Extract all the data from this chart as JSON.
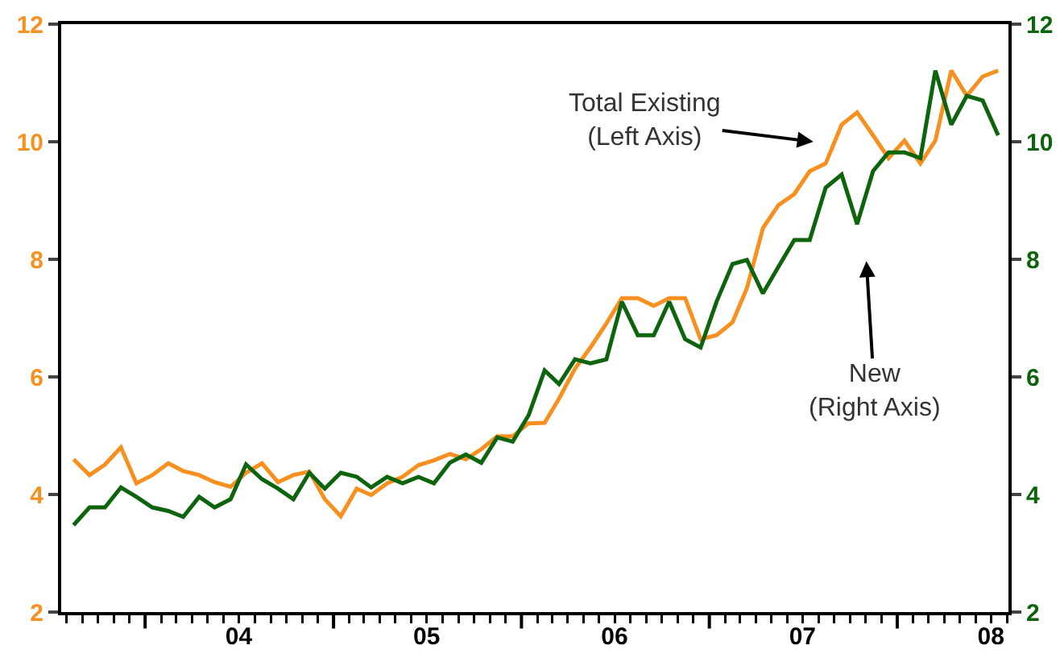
{
  "chart_data": {
    "type": "line",
    "x": [
      "2003-08-15",
      "2003-09-15",
      "2003-10-15",
      "2003-11-15",
      "2003-12-15",
      "2004-01-15",
      "2004-02-15",
      "2004-03-15",
      "2004-04-15",
      "2004-05-15",
      "2004-06-15",
      "2004-07-15",
      "2004-08-15",
      "2004-09-15",
      "2004-10-15",
      "2004-11-15",
      "2004-12-15",
      "2005-01-15",
      "2005-02-15",
      "2005-03-15",
      "2005-04-15",
      "2005-05-15",
      "2005-06-15",
      "2005-07-15",
      "2005-08-15",
      "2005-09-15",
      "2005-10-15",
      "2005-11-15",
      "2005-12-15",
      "2006-01-15",
      "2006-02-15",
      "2006-03-15",
      "2006-04-15",
      "2006-05-15",
      "2006-06-15",
      "2006-07-15",
      "2006-08-15",
      "2006-09-15",
      "2006-10-15",
      "2006-11-15",
      "2006-12-15",
      "2007-01-15",
      "2007-02-15",
      "2007-03-15",
      "2007-04-15",
      "2007-05-15",
      "2007-06-15",
      "2007-07-15",
      "2007-08-15",
      "2007-09-15",
      "2007-10-15",
      "2007-11-15",
      "2007-12-15",
      "2008-01-15",
      "2008-02-15",
      "2008-03-15",
      "2008-04-15",
      "2008-05-15",
      "2008-06-15",
      "2008-07-15"
    ],
    "series": [
      {
        "color": "#f7901e",
        "values": [
          4.6,
          4.33,
          4.51,
          4.8,
          4.19,
          4.33,
          4.53,
          4.4,
          4.33,
          4.21,
          4.13,
          4.37,
          4.53,
          4.21,
          4.33,
          4.39,
          3.92,
          3.63,
          4.1,
          3.99,
          4.19,
          4.3,
          4.5,
          4.58,
          4.69,
          4.6,
          4.77,
          4.99,
          4.99,
          5.21,
          5.22,
          5.63,
          6.14,
          6.5,
          6.91,
          7.34,
          7.34,
          7.21,
          7.34,
          7.34,
          6.64,
          6.71,
          6.93,
          7.51,
          8.53,
          8.92,
          9.11,
          9.5,
          9.63,
          10.29,
          10.5,
          10.11,
          9.72,
          10.02,
          9.63,
          10.02,
          11.21,
          10.78,
          11.11,
          11.21
        ]
      },
      {
        "color": "#0d640d",
        "axis": "y2",
        "values": [
          3.48,
          3.78,
          3.78,
          4.12,
          3.96,
          3.78,
          3.72,
          3.62,
          3.96,
          3.78,
          3.92,
          4.51,
          4.26,
          4.1,
          3.92,
          4.37,
          4.1,
          4.37,
          4.3,
          4.12,
          4.3,
          4.19,
          4.3,
          4.19,
          4.54,
          4.68,
          4.54,
          4.97,
          4.9,
          5.35,
          6.11,
          5.88,
          6.3,
          6.23,
          6.3,
          7.28,
          6.71,
          6.71,
          7.28,
          6.64,
          6.5,
          7.28,
          7.92,
          7.99,
          7.42,
          7.87,
          8.33,
          8.33,
          9.22,
          9.44,
          8.6,
          9.5,
          9.82,
          9.82,
          9.72,
          11.21,
          10.29,
          10.78,
          10.7,
          10.11
        ]
      }
    ],
    "xlim": [
      "2003-07-22",
      "2008-08-04"
    ],
    "xticks": [
      {
        "value": "2004-01-01",
        "label": null
      },
      {
        "value": "2004-07-01",
        "label": "04"
      },
      {
        "value": "2005-01-01",
        "label": null
      },
      {
        "value": "2005-07-01",
        "label": "05"
      },
      {
        "value": "2006-01-01",
        "label": null
      },
      {
        "value": "2006-07-01",
        "label": "06"
      },
      {
        "value": "2007-01-01",
        "label": null
      },
      {
        "value": "2007-07-01",
        "label": "07"
      },
      {
        "value": "2008-01-01",
        "label": null
      },
      {
        "value": "2008-07-01",
        "label": "08"
      }
    ],
    "ylim": [
      2,
      12
    ],
    "yticks": [
      2,
      4,
      6,
      8,
      10,
      12
    ],
    "y2lim": [
      2,
      12
    ],
    "y2ticks": [
      2,
      4,
      6,
      8,
      10,
      12
    ],
    "annotations": [
      "Total Existing\n(Left Axis)",
      "New\n(Right Axis)"
    ],
    "marker": "none",
    "line_style": "solid"
  }
}
